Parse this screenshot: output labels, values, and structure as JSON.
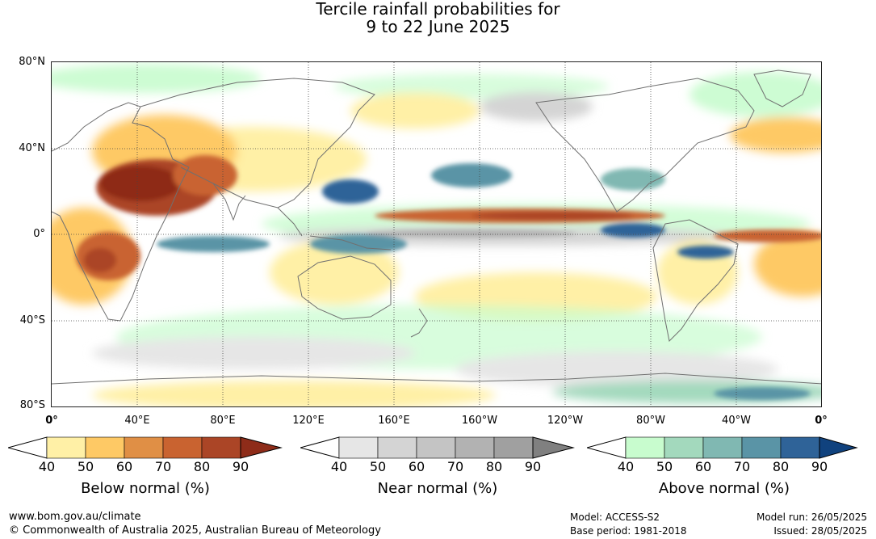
{
  "title_line1": "Tercile rainfall probabilities for",
  "title_line2": "9 to 22 June 2025",
  "lat_labels": [
    "80°N",
    "40°N",
    "0°",
    "40°S",
    "80°S"
  ],
  "lon_labels": [
    "0°",
    "40°E",
    "80°E",
    "120°E",
    "160°E",
    "160°W",
    "120°W",
    "80°W",
    "40°W",
    "0°"
  ],
  "colorbars": [
    {
      "name": "below",
      "title": "Below normal (%)",
      "ticks": [
        "40",
        "50",
        "60",
        "70",
        "80",
        "90"
      ],
      "colors": [
        "#fff0a6",
        "#fec965",
        "#e08f45",
        "#c96330",
        "#ab4526",
        "#8e2c19"
      ]
    },
    {
      "name": "near",
      "title": "Near normal (%)",
      "ticks": [
        "40",
        "50",
        "60",
        "70",
        "80",
        "90"
      ],
      "colors": [
        "#e6e6e6",
        "#d4d4d4",
        "#c4c4c4",
        "#b2b2b2",
        "#a0a0a0",
        "#808080"
      ]
    },
    {
      "name": "above",
      "title": "Above normal (%)",
      "ticks": [
        "40",
        "50",
        "60",
        "70",
        "80",
        "90"
      ],
      "colors": [
        "#c8fcce",
        "#a3d9bd",
        "#80b8b2",
        "#5a94a6",
        "#2f6398",
        "#10427e"
      ]
    }
  ],
  "footer": {
    "website": "www.bom.gov.au/climate",
    "copyright": "© Commonwealth of Australia 2025, Australian Bureau of Meteorology",
    "model": "Model: ACCESS-S2",
    "base_period": "Base period: 1981-2018",
    "model_run": "Model run: 26/05/2025",
    "issued": "Issued: 28/05/2025"
  }
}
